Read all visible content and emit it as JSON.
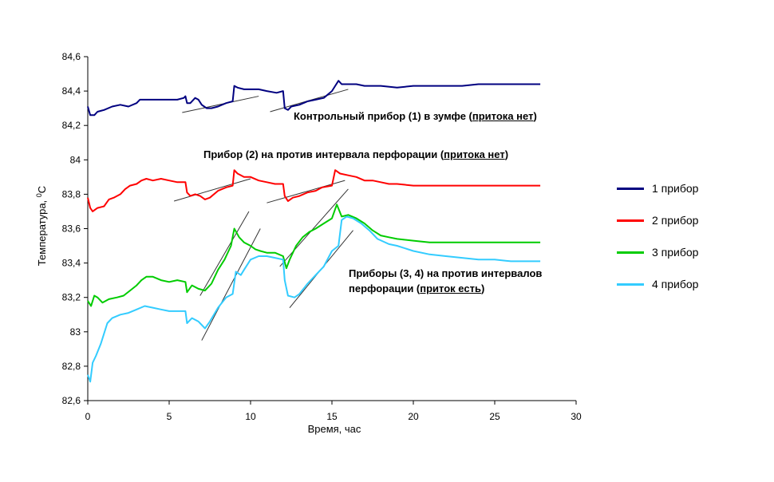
{
  "chart_data": {
    "type": "line",
    "xlabel": "Время, час",
    "ylabel_main": "Температура, ",
    "ylabel_sup": "0",
    "ylabel_unit": "C",
    "xlim": [
      0,
      30
    ],
    "ylim": [
      82.6,
      84.6
    ],
    "x_ticks": [
      0,
      5,
      10,
      15,
      20,
      25,
      30
    ],
    "x_tick_labels": [
      "0",
      "5",
      "10",
      "15",
      "20",
      "25",
      "30"
    ],
    "y_ticks": [
      82.6,
      82.8,
      83.0,
      83.2,
      83.4,
      83.6,
      83.8,
      84.0,
      84.2,
      84.4,
      84.6
    ],
    "y_tick_labels": [
      "82,6",
      "82,8",
      "83",
      "83,2",
      "83,4",
      "83,6",
      "83,8",
      "84",
      "84,2",
      "84,4",
      "84,6"
    ],
    "grid": false,
    "legend_position": "right",
    "series": [
      {
        "name": "1 прибор",
        "color": "#000080",
        "points": [
          [
            0,
            84.31
          ],
          [
            0.15,
            84.26
          ],
          [
            0.4,
            84.26
          ],
          [
            0.6,
            84.28
          ],
          [
            1,
            84.29
          ],
          [
            1.5,
            84.31
          ],
          [
            2,
            84.32
          ],
          [
            2.5,
            84.31
          ],
          [
            3,
            84.33
          ],
          [
            3.2,
            84.35
          ],
          [
            4,
            84.35
          ],
          [
            5,
            84.35
          ],
          [
            5.5,
            84.35
          ],
          [
            5.9,
            84.36
          ],
          [
            6.0,
            84.37
          ],
          [
            6.1,
            84.33
          ],
          [
            6.3,
            84.33
          ],
          [
            6.6,
            84.36
          ],
          [
            6.8,
            84.35
          ],
          [
            7.0,
            84.32
          ],
          [
            7.3,
            84.3
          ],
          [
            7.6,
            84.3
          ],
          [
            8,
            84.31
          ],
          [
            8.5,
            84.33
          ],
          [
            8.9,
            84.34
          ],
          [
            9.0,
            84.43
          ],
          [
            9.2,
            84.42
          ],
          [
            9.6,
            84.41
          ],
          [
            10,
            84.41
          ],
          [
            10.5,
            84.41
          ],
          [
            11,
            84.4
          ],
          [
            11.6,
            84.39
          ],
          [
            12.0,
            84.4
          ],
          [
            12.1,
            84.3
          ],
          [
            12.3,
            84.29
          ],
          [
            12.5,
            84.31
          ],
          [
            13,
            84.32
          ],
          [
            13.5,
            84.34
          ],
          [
            14,
            84.35
          ],
          [
            14.5,
            84.36
          ],
          [
            15.0,
            84.4
          ],
          [
            15.2,
            84.43
          ],
          [
            15.4,
            84.46
          ],
          [
            15.6,
            84.44
          ],
          [
            16,
            84.44
          ],
          [
            16.5,
            84.44
          ],
          [
            17,
            84.43
          ],
          [
            17.5,
            84.43
          ],
          [
            18,
            84.43
          ],
          [
            19,
            84.42
          ],
          [
            20,
            84.43
          ],
          [
            21,
            84.43
          ],
          [
            22,
            84.43
          ],
          [
            23,
            84.43
          ],
          [
            24,
            84.44
          ],
          [
            25,
            84.44
          ],
          [
            26,
            84.44
          ],
          [
            27,
            84.44
          ],
          [
            27.8,
            84.44
          ]
        ]
      },
      {
        "name": "2 прибор",
        "color": "#ff0000",
        "points": [
          [
            0,
            83.78
          ],
          [
            0.15,
            83.72
          ],
          [
            0.3,
            83.7
          ],
          [
            0.6,
            83.72
          ],
          [
            1,
            83.73
          ],
          [
            1.3,
            83.77
          ],
          [
            1.6,
            83.78
          ],
          [
            2,
            83.8
          ],
          [
            2.3,
            83.83
          ],
          [
            2.6,
            83.85
          ],
          [
            3,
            83.86
          ],
          [
            3.3,
            83.88
          ],
          [
            3.6,
            83.89
          ],
          [
            4,
            83.88
          ],
          [
            4.5,
            83.89
          ],
          [
            5,
            83.88
          ],
          [
            5.5,
            83.87
          ],
          [
            6.0,
            83.87
          ],
          [
            6.1,
            83.81
          ],
          [
            6.3,
            83.79
          ],
          [
            6.6,
            83.8
          ],
          [
            6.9,
            83.79
          ],
          [
            7.2,
            83.77
          ],
          [
            7.5,
            83.78
          ],
          [
            8,
            83.82
          ],
          [
            8.5,
            83.84
          ],
          [
            8.9,
            83.85
          ],
          [
            9.0,
            83.94
          ],
          [
            9.2,
            83.92
          ],
          [
            9.6,
            83.9
          ],
          [
            10,
            83.9
          ],
          [
            10.5,
            83.88
          ],
          [
            11,
            83.87
          ],
          [
            11.5,
            83.86
          ],
          [
            12.0,
            83.86
          ],
          [
            12.1,
            83.79
          ],
          [
            12.3,
            83.76
          ],
          [
            12.6,
            83.78
          ],
          [
            13,
            83.79
          ],
          [
            13.5,
            83.81
          ],
          [
            14,
            83.82
          ],
          [
            14.4,
            83.84
          ],
          [
            15.0,
            83.85
          ],
          [
            15.2,
            83.94
          ],
          [
            15.5,
            83.92
          ],
          [
            16,
            83.91
          ],
          [
            16.5,
            83.9
          ],
          [
            17,
            83.88
          ],
          [
            17.5,
            83.88
          ],
          [
            18,
            83.87
          ],
          [
            18.5,
            83.86
          ],
          [
            19,
            83.86
          ],
          [
            20,
            83.85
          ],
          [
            21,
            83.85
          ],
          [
            22,
            83.85
          ],
          [
            23,
            83.85
          ],
          [
            24,
            83.85
          ],
          [
            25,
            83.85
          ],
          [
            26,
            83.85
          ],
          [
            27,
            83.85
          ],
          [
            27.8,
            83.85
          ]
        ]
      },
      {
        "name": "3 прибор",
        "color": "#00cc00",
        "points": [
          [
            0,
            83.18
          ],
          [
            0.2,
            83.15
          ],
          [
            0.4,
            83.21
          ],
          [
            0.6,
            83.2
          ],
          [
            0.9,
            83.17
          ],
          [
            1.3,
            83.19
          ],
          [
            1.8,
            83.2
          ],
          [
            2.2,
            83.21
          ],
          [
            2.6,
            83.24
          ],
          [
            3,
            83.27
          ],
          [
            3.3,
            83.3
          ],
          [
            3.6,
            83.32
          ],
          [
            4,
            83.32
          ],
          [
            4.5,
            83.3
          ],
          [
            5,
            83.29
          ],
          [
            5.5,
            83.3
          ],
          [
            6.0,
            83.29
          ],
          [
            6.1,
            83.23
          ],
          [
            6.4,
            83.27
          ],
          [
            6.8,
            83.25
          ],
          [
            7.2,
            83.24
          ],
          [
            7.6,
            83.28
          ],
          [
            8,
            83.36
          ],
          [
            8.4,
            83.42
          ],
          [
            8.8,
            83.5
          ],
          [
            9.0,
            83.6
          ],
          [
            9.3,
            83.55
          ],
          [
            9.6,
            83.52
          ],
          [
            10,
            83.5
          ],
          [
            10.3,
            83.48
          ],
          [
            10.6,
            83.47
          ],
          [
            11,
            83.46
          ],
          [
            11.5,
            83.46
          ],
          [
            12.0,
            83.44
          ],
          [
            12.2,
            83.37
          ],
          [
            12.4,
            83.42
          ],
          [
            12.8,
            83.5
          ],
          [
            13.2,
            83.55
          ],
          [
            13.6,
            83.58
          ],
          [
            14,
            83.6
          ],
          [
            14.5,
            83.63
          ],
          [
            15,
            83.66
          ],
          [
            15.3,
            83.74
          ],
          [
            15.6,
            83.67
          ],
          [
            16,
            83.68
          ],
          [
            16.5,
            83.66
          ],
          [
            17,
            83.63
          ],
          [
            17.5,
            83.59
          ],
          [
            18,
            83.56
          ],
          [
            18.5,
            83.55
          ],
          [
            19,
            83.54
          ],
          [
            20,
            83.53
          ],
          [
            21,
            83.52
          ],
          [
            22,
            83.52
          ],
          [
            23,
            83.52
          ],
          [
            24,
            83.52
          ],
          [
            25,
            83.52
          ],
          [
            26,
            83.52
          ],
          [
            27,
            83.52
          ],
          [
            27.8,
            83.52
          ]
        ]
      },
      {
        "name": "4 прибор",
        "color": "#33ccff",
        "points": [
          [
            0,
            82.75
          ],
          [
            0.15,
            82.71
          ],
          [
            0.3,
            82.82
          ],
          [
            0.5,
            82.86
          ],
          [
            0.8,
            82.93
          ],
          [
            1.2,
            83.05
          ],
          [
            1.5,
            83.08
          ],
          [
            2,
            83.1
          ],
          [
            2.5,
            83.11
          ],
          [
            3,
            83.13
          ],
          [
            3.5,
            83.15
          ],
          [
            4,
            83.14
          ],
          [
            4.5,
            83.13
          ],
          [
            5,
            83.12
          ],
          [
            5.5,
            83.12
          ],
          [
            6.0,
            83.12
          ],
          [
            6.1,
            83.05
          ],
          [
            6.4,
            83.08
          ],
          [
            6.8,
            83.06
          ],
          [
            7.2,
            83.02
          ],
          [
            7.5,
            83.06
          ],
          [
            8,
            83.14
          ],
          [
            8.5,
            83.2
          ],
          [
            8.9,
            83.22
          ],
          [
            9.1,
            83.35
          ],
          [
            9.4,
            83.33
          ],
          [
            9.6,
            83.36
          ],
          [
            10,
            83.42
          ],
          [
            10.5,
            83.44
          ],
          [
            11,
            83.44
          ],
          [
            11.5,
            83.43
          ],
          [
            12,
            83.42
          ],
          [
            12.1,
            83.3
          ],
          [
            12.3,
            83.21
          ],
          [
            12.7,
            83.2
          ],
          [
            13,
            83.22
          ],
          [
            13.5,
            83.28
          ],
          [
            14,
            83.33
          ],
          [
            14.5,
            83.38
          ],
          [
            15,
            83.47
          ],
          [
            15.4,
            83.5
          ],
          [
            15.6,
            83.65
          ],
          [
            15.9,
            83.67
          ],
          [
            16.3,
            83.66
          ],
          [
            16.8,
            83.63
          ],
          [
            17.3,
            83.59
          ],
          [
            17.8,
            83.54
          ],
          [
            18.5,
            83.51
          ],
          [
            19,
            83.5
          ],
          [
            20,
            83.47
          ],
          [
            21,
            83.45
          ],
          [
            22,
            83.44
          ],
          [
            23,
            83.43
          ],
          [
            24,
            83.42
          ],
          [
            25,
            83.42
          ],
          [
            26,
            83.41
          ],
          [
            27,
            83.41
          ],
          [
            27.8,
            83.41
          ]
        ]
      }
    ],
    "trend_lines": [
      [
        [
          5.8,
          84.275
        ],
        [
          10.5,
          84.37
        ]
      ],
      [
        [
          11.2,
          84.28
        ],
        [
          16.0,
          84.41
        ]
      ],
      [
        [
          5.3,
          83.76
        ],
        [
          10.0,
          83.89
        ]
      ],
      [
        [
          11.0,
          83.75
        ],
        [
          15.8,
          83.88
        ]
      ],
      [
        [
          6.9,
          83.21
        ],
        [
          9.9,
          83.7
        ]
      ],
      [
        [
          11.8,
          83.38
        ],
        [
          16.0,
          83.83
        ]
      ],
      [
        [
          7.0,
          82.95
        ],
        [
          10.6,
          83.6
        ]
      ],
      [
        [
          12.4,
          83.14
        ],
        [
          16.3,
          83.59
        ]
      ]
    ],
    "annotations": [
      {
        "text_before": "Контрольный прибор (1) в зумфе (",
        "underlined": "притока нет",
        "text_after": ")"
      },
      {
        "text_before": "Прибор (2) на против интервала перфорации (",
        "underlined": "притока нет",
        "text_after": ")"
      },
      {
        "line1": "Приборы (3, 4) на против интервалов",
        "text_before": "перфорации (",
        "underlined": "приток есть",
        "text_after": ")"
      }
    ]
  }
}
